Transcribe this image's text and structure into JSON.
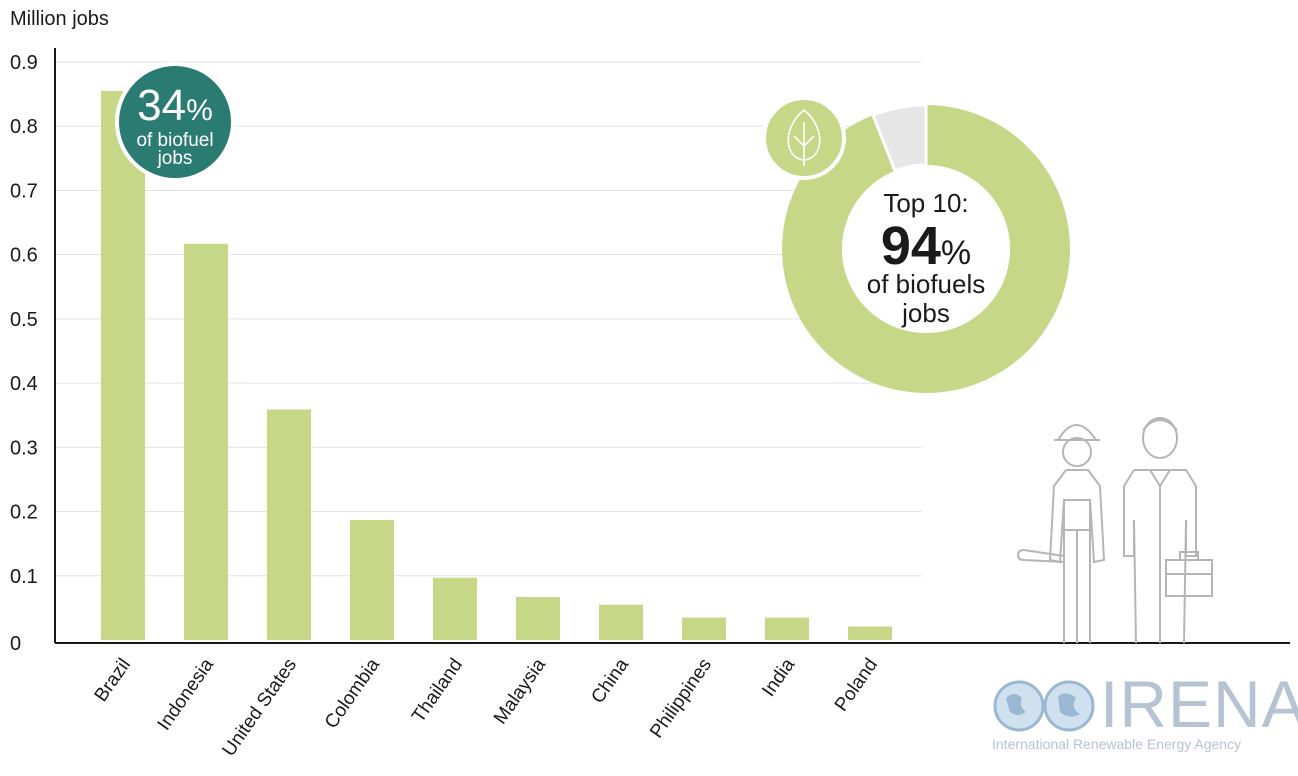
{
  "chart_data": {
    "type": "bar",
    "ylabel": "Million jobs",
    "ylim": [
      0,
      0.9
    ],
    "yticks": [
      "0",
      "0.1",
      "0.2",
      "0.3",
      "0.4",
      "0.5",
      "0.6",
      "0.7",
      "0.8",
      "0.9"
    ],
    "categories": [
      "Brazil",
      "Indonesia",
      "United States",
      "Colombia",
      "Thailand",
      "Malaysia",
      "China",
      "Philippines",
      "India",
      "Poland"
    ],
    "values": [
      0.855,
      0.617,
      0.359,
      0.187,
      0.097,
      0.067,
      0.055,
      0.035,
      0.035,
      0.021
    ],
    "bar_color": "#c6d888",
    "grid": true
  },
  "badge": {
    "value": "34",
    "unit": "%",
    "line1": "of biofuel",
    "line2": "jobs",
    "color": "#2a7b72"
  },
  "donut": {
    "share": 0.94,
    "title": "Top 10:",
    "value": "94",
    "unit": "%",
    "line1": "of biofuels",
    "line2": "jobs",
    "main_color": "#c6d888",
    "rest_color": "#e6e6e6",
    "icon": "leaf-icon"
  },
  "logo": {
    "name": "IRENA",
    "subtitle": "International Renewable Energy Agency",
    "icon": "globe-icon"
  }
}
